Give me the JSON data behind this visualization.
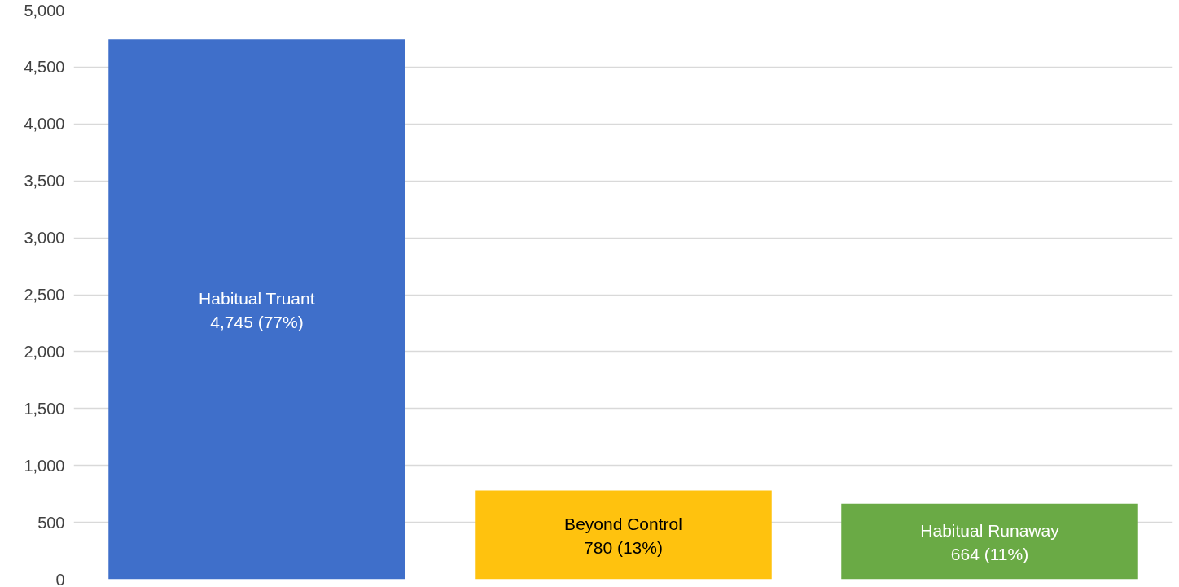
{
  "chart_data": {
    "type": "bar",
    "categories": [
      "Habitual Truant",
      "Beyond Control",
      "Habitual Runaway"
    ],
    "values": [
      4745,
      780,
      664
    ],
    "value_labels": [
      "4,745 (77%)",
      "780 (13%)",
      "664 (11%)"
    ],
    "colors": [
      "#3f6fca",
      "#ffc20e",
      "#6aaa45"
    ],
    "ylim": [
      0,
      5000
    ],
    "yticks": [
      0,
      500,
      {
        "value": 1000,
        "label": "1,000"
      },
      {
        "value": 1500,
        "label": "1,500"
      },
      {
        "value": 2000,
        "label": "2,000"
      },
      {
        "value": 2500,
        "label": "2,500"
      },
      {
        "value": 3000,
        "label": "3,000"
      },
      {
        "value": 3500,
        "label": "3,500"
      },
      {
        "value": 4000,
        "label": "4,000"
      },
      {
        "value": 4500,
        "label": "4,500"
      },
      {
        "value": 5000,
        "label": "5,000"
      }
    ],
    "grid": "y",
    "tick_labels": "y"
  }
}
